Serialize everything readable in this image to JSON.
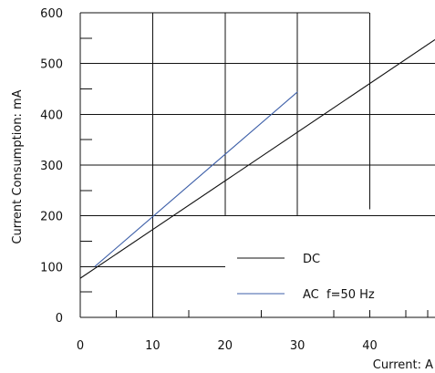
{
  "chart_data": {
    "type": "line",
    "title": "",
    "xlabel": "Current: A",
    "ylabel": "Current Consumption: mA",
    "xlim": [
      0,
      49
    ],
    "ylim": [
      0,
      600
    ],
    "x_ticks": [
      "0",
      "10",
      "20",
      "30",
      "40"
    ],
    "y_ticks": [
      "0",
      "100",
      "200",
      "300",
      "400",
      "500",
      "600"
    ],
    "grid": true,
    "legend_position": "lower-right",
    "series": [
      {
        "name": "DC",
        "color": "#111111",
        "x": [
          0,
          49
        ],
        "y": [
          77,
          547
        ]
      },
      {
        "name": "AC  f=50 Hz",
        "color": "#3d5fa8",
        "x": [
          2,
          30
        ],
        "y": [
          100,
          444
        ]
      }
    ]
  }
}
